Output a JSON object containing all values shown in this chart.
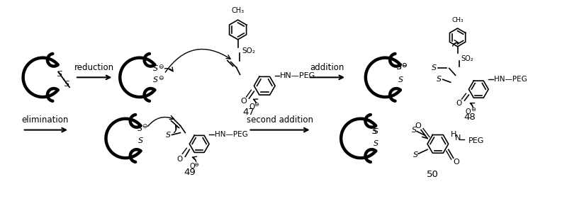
{
  "background_color": "#ffffff",
  "fig_width": 8.0,
  "fig_height": 2.84,
  "dpi": 100,
  "labels": {
    "reduction": "reduction",
    "addition": "addition",
    "elimination": "elimination",
    "second_addition": "second addition",
    "compound_47": "47",
    "compound_48": "48",
    "compound_49": "49",
    "compound_50": "50"
  },
  "line_color": "#000000",
  "text_color": "#000000"
}
